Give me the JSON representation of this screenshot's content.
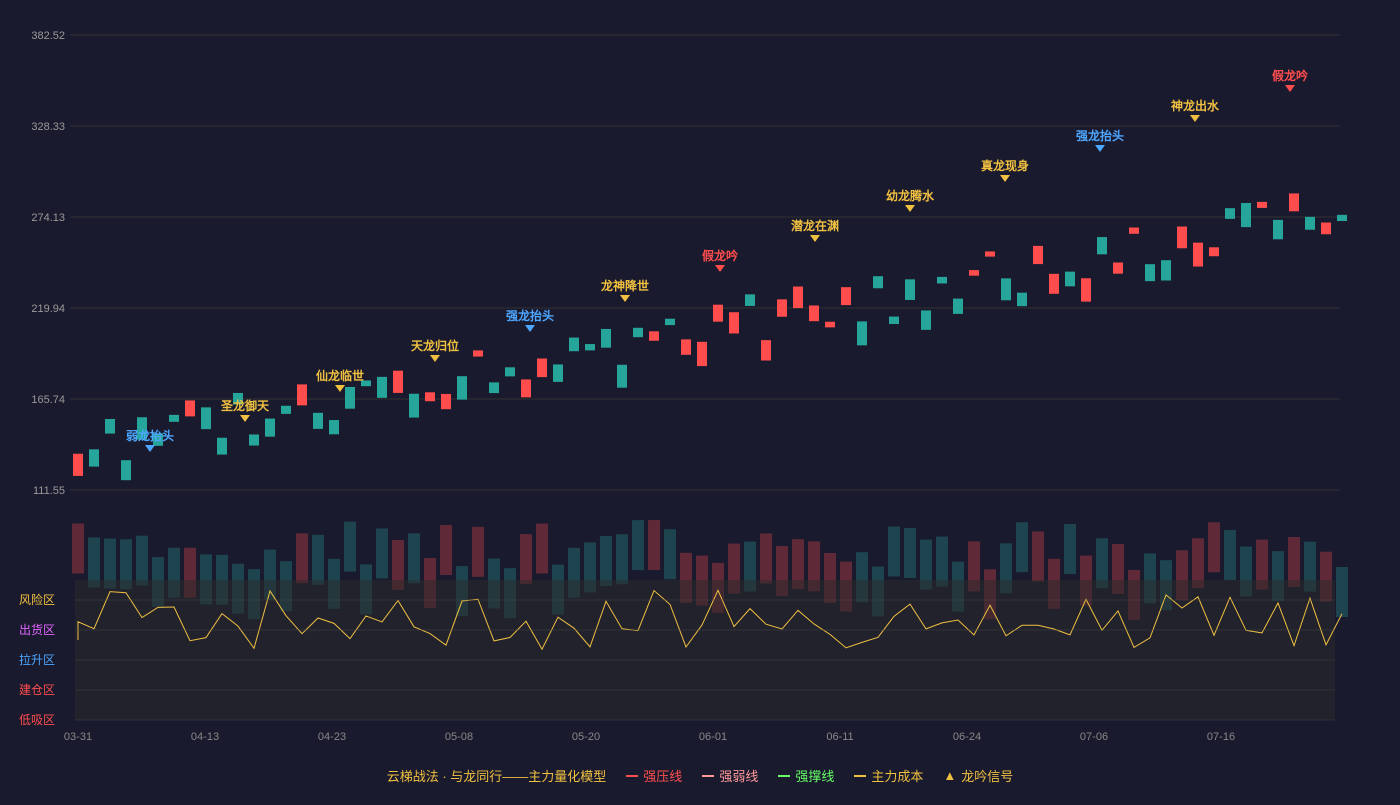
{
  "chart_data": {
    "type": "candlestick",
    "y_axis": {
      "ticks": [
        "382.52",
        "328.33",
        "274.13",
        "219.94",
        "165.74",
        "111.55"
      ],
      "min": 111.55,
      "max": 382.52
    },
    "x_axis": {
      "ticks": [
        "03-31",
        "04-13",
        "04-23",
        "05-08",
        "05-20",
        "06-01",
        "06-11",
        "06-24",
        "07-06",
        "07-16"
      ]
    },
    "sub_chart": {
      "y_ticks": [
        "0",
        "20",
        "40",
        "60",
        "80",
        "100"
      ],
      "zones": [
        {
          "label": "风险区",
          "color": "#f0c040"
        },
        {
          "label": "出货区",
          "color": "#e066ff"
        },
        {
          "label": "拉升区",
          "color": "#4da6ff"
        },
        {
          "label": "建仓区",
          "color": "#ff4d4d"
        },
        {
          "label": "低吸区",
          "color": "#ff4d4d"
        }
      ]
    },
    "signals": [
      {
        "text": "弱龙抬头",
        "color": "#4da6ff",
        "type": "down"
      },
      {
        "text": "圣龙御天",
        "color": "#f0c040",
        "type": "down"
      },
      {
        "text": "仙龙临世",
        "color": "#f0c040",
        "type": "down"
      },
      {
        "text": "天龙归位",
        "color": "#f0c040",
        "type": "down"
      },
      {
        "text": "强龙抬头",
        "color": "#4da6ff",
        "type": "down"
      },
      {
        "text": "龙神降世",
        "color": "#f0c040",
        "type": "down"
      },
      {
        "text": "假龙吟",
        "color": "#ff4d4d",
        "type": "down"
      },
      {
        "text": "潜龙在渊",
        "color": "#f0c040",
        "type": "down"
      },
      {
        "text": "幼龙腾水",
        "color": "#f0c040",
        "type": "down"
      },
      {
        "text": "真龙现身",
        "color": "#f0c040",
        "type": "down"
      },
      {
        "text": "强龙抬头",
        "color": "#4da6ff",
        "type": "down"
      },
      {
        "text": "神龙出水",
        "color": "#f0c040",
        "type": "down"
      },
      {
        "text": "假龙吟",
        "color": "#ff4d4d",
        "type": "down"
      }
    ]
  },
  "legend": {
    "title": "云梯战法 · 与龙同行——主力量化模型",
    "items": [
      {
        "label": "强压线",
        "color": "#ff4d4d",
        "style": "solid"
      },
      {
        "label": "强弱线",
        "color": "#ff9999",
        "style": "dashed"
      },
      {
        "label": "强撑线",
        "color": "#66ff66",
        "style": "solid"
      },
      {
        "label": "主力成本",
        "color": "#f0c040",
        "style": "dashed"
      },
      {
        "label": "龙吟信号",
        "color": "#f0c040",
        "style": "triangle"
      }
    ]
  }
}
